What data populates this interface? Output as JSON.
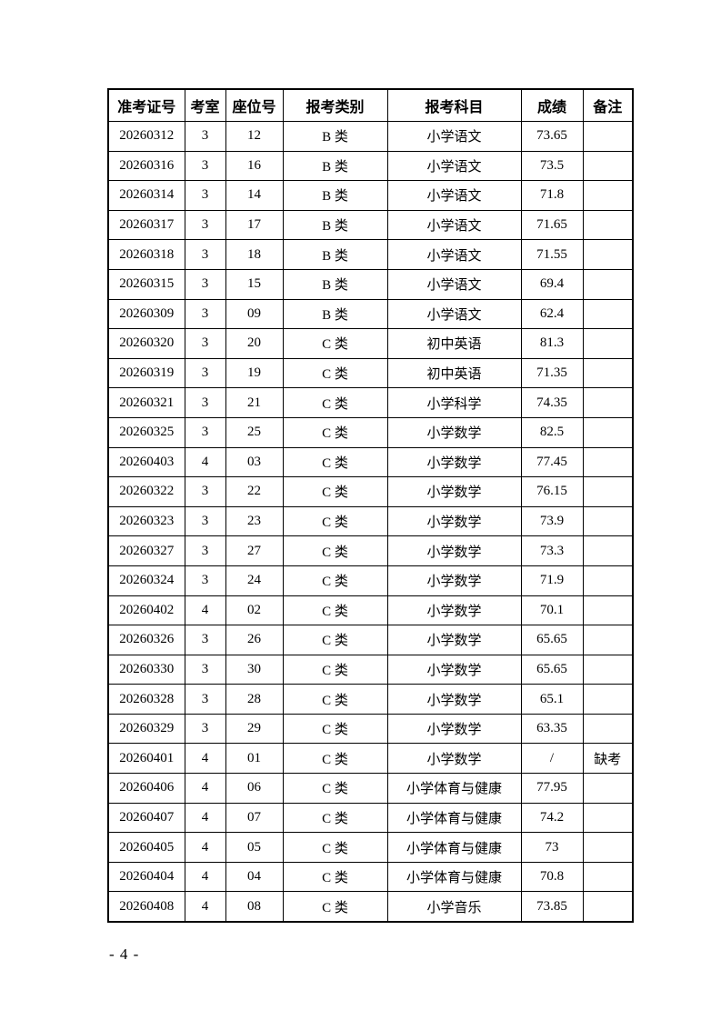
{
  "page": {
    "number_label": "- 4 -"
  },
  "table": {
    "columns": [
      {
        "key": "ticket",
        "label": "准考证号"
      },
      {
        "key": "room",
        "label": "考室"
      },
      {
        "key": "seat",
        "label": "座位号"
      },
      {
        "key": "category",
        "label": "报考类别"
      },
      {
        "key": "subject",
        "label": "报考科目"
      },
      {
        "key": "score",
        "label": "成绩"
      },
      {
        "key": "remark",
        "label": "备注"
      }
    ],
    "rows": [
      [
        "20260312",
        "3",
        "12",
        "B 类",
        "小学语文",
        "73.65",
        ""
      ],
      [
        "20260316",
        "3",
        "16",
        "B 类",
        "小学语文",
        "73.5",
        ""
      ],
      [
        "20260314",
        "3",
        "14",
        "B 类",
        "小学语文",
        "71.8",
        ""
      ],
      [
        "20260317",
        "3",
        "17",
        "B 类",
        "小学语文",
        "71.65",
        ""
      ],
      [
        "20260318",
        "3",
        "18",
        "B 类",
        "小学语文",
        "71.55",
        ""
      ],
      [
        "20260315",
        "3",
        "15",
        "B 类",
        "小学语文",
        "69.4",
        ""
      ],
      [
        "20260309",
        "3",
        "09",
        "B 类",
        "小学语文",
        "62.4",
        ""
      ],
      [
        "20260320",
        "3",
        "20",
        "C 类",
        "初中英语",
        "81.3",
        ""
      ],
      [
        "20260319",
        "3",
        "19",
        "C 类",
        "初中英语",
        "71.35",
        ""
      ],
      [
        "20260321",
        "3",
        "21",
        "C 类",
        "小学科学",
        "74.35",
        ""
      ],
      [
        "20260325",
        "3",
        "25",
        "C 类",
        "小学数学",
        "82.5",
        ""
      ],
      [
        "20260403",
        "4",
        "03",
        "C 类",
        "小学数学",
        "77.45",
        ""
      ],
      [
        "20260322",
        "3",
        "22",
        "C 类",
        "小学数学",
        "76.15",
        ""
      ],
      [
        "20260323",
        "3",
        "23",
        "C 类",
        "小学数学",
        "73.9",
        ""
      ],
      [
        "20260327",
        "3",
        "27",
        "C 类",
        "小学数学",
        "73.3",
        ""
      ],
      [
        "20260324",
        "3",
        "24",
        "C 类",
        "小学数学",
        "71.9",
        ""
      ],
      [
        "20260402",
        "4",
        "02",
        "C 类",
        "小学数学",
        "70.1",
        ""
      ],
      [
        "20260326",
        "3",
        "26",
        "C 类",
        "小学数学",
        "65.65",
        ""
      ],
      [
        "20260330",
        "3",
        "30",
        "C 类",
        "小学数学",
        "65.65",
        ""
      ],
      [
        "20260328",
        "3",
        "28",
        "C 类",
        "小学数学",
        "65.1",
        ""
      ],
      [
        "20260329",
        "3",
        "29",
        "C 类",
        "小学数学",
        "63.35",
        ""
      ],
      [
        "20260401",
        "4",
        "01",
        "C 类",
        "小学数学",
        "/",
        "缺考"
      ],
      [
        "20260406",
        "4",
        "06",
        "C 类",
        "小学体育与健康",
        "77.95",
        ""
      ],
      [
        "20260407",
        "4",
        "07",
        "C 类",
        "小学体育与健康",
        "74.2",
        ""
      ],
      [
        "20260405",
        "4",
        "05",
        "C 类",
        "小学体育与健康",
        "73",
        ""
      ],
      [
        "20260404",
        "4",
        "04",
        "C 类",
        "小学体育与健康",
        "70.8",
        ""
      ],
      [
        "20260408",
        "4",
        "08",
        "C 类",
        "小学音乐",
        "73.85",
        ""
      ]
    ]
  }
}
